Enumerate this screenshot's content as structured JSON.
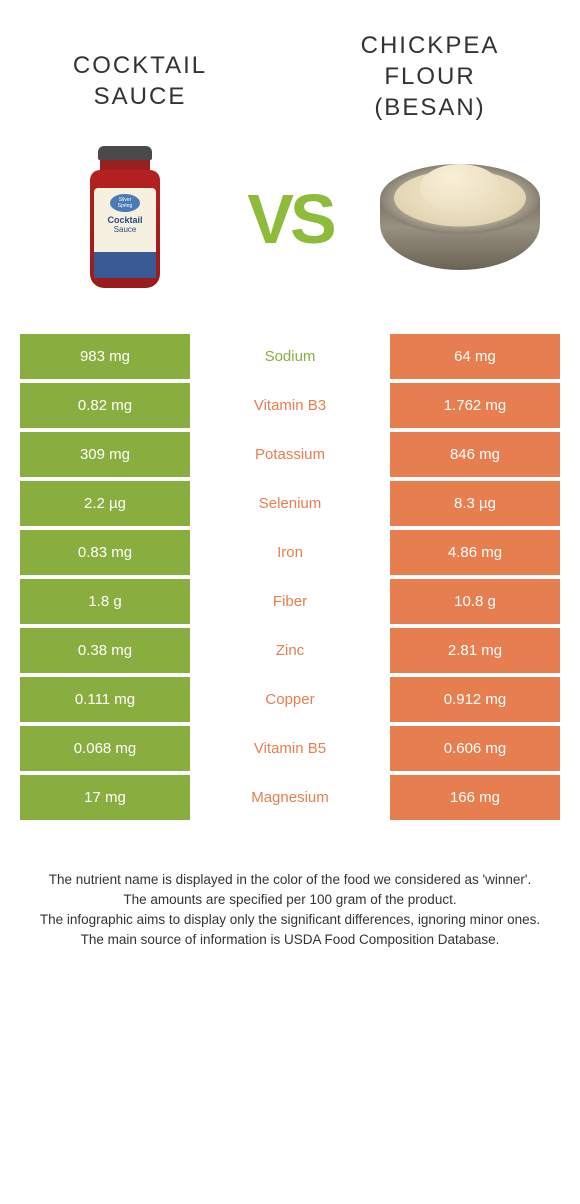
{
  "colors": {
    "left": "#8aad3f",
    "right": "#e67e4f",
    "vs": "#8fbb3b"
  },
  "left": {
    "title_line1": "COCKTAIL",
    "title_line2": "SAUCE",
    "image_alt": "cocktail-sauce-jar"
  },
  "right": {
    "title_line1": "CHICKPEA",
    "title_line2": "FLOUR",
    "title_line3": "(BESAN)",
    "image_alt": "chickpea-flour-bowl"
  },
  "vs": "VS",
  "rows": [
    {
      "nutrient": "Sodium",
      "left": "983 mg",
      "right": "64 mg",
      "winner": "left"
    },
    {
      "nutrient": "Vitamin B3",
      "left": "0.82 mg",
      "right": "1.762 mg",
      "winner": "right"
    },
    {
      "nutrient": "Potassium",
      "left": "309 mg",
      "right": "846 mg",
      "winner": "right"
    },
    {
      "nutrient": "Selenium",
      "left": "2.2 µg",
      "right": "8.3 µg",
      "winner": "right"
    },
    {
      "nutrient": "Iron",
      "left": "0.83 mg",
      "right": "4.86 mg",
      "winner": "right"
    },
    {
      "nutrient": "Fiber",
      "left": "1.8 g",
      "right": "10.8 g",
      "winner": "right"
    },
    {
      "nutrient": "Zinc",
      "left": "0.38 mg",
      "right": "2.81 mg",
      "winner": "right"
    },
    {
      "nutrient": "Copper",
      "left": "0.111 mg",
      "right": "0.912 mg",
      "winner": "right"
    },
    {
      "nutrient": "Vitamin B5",
      "left": "0.068 mg",
      "right": "0.606 mg",
      "winner": "right"
    },
    {
      "nutrient": "Magnesium",
      "left": "17 mg",
      "right": "166 mg",
      "winner": "right"
    }
  ],
  "footnotes": [
    "The nutrient name is displayed in the color of the food we considered as 'winner'.",
    "The amounts are specified per 100 gram of the product.",
    "The infographic aims to display only the significant differences, ignoring minor ones.",
    "The main source of information is USDA Food Composition Database."
  ]
}
